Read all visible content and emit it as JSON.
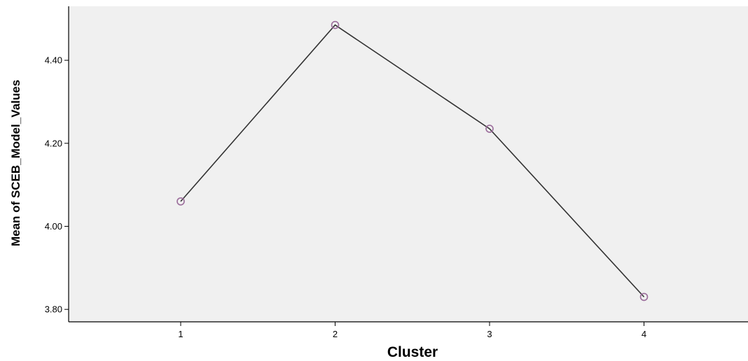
{
  "chart_data": {
    "type": "line",
    "title": "",
    "xlabel": "Cluster",
    "ylabel": "Mean of SCEB_Model_Values",
    "categories": [
      "1",
      "2",
      "3",
      "4"
    ],
    "series": [
      {
        "values": [
          4.06,
          4.485,
          4.235,
          3.83
        ]
      }
    ],
    "ylim": [
      3.77,
      4.53
    ],
    "yticks": [
      3.8,
      4.0,
      4.2,
      4.4
    ],
    "ytick_labels": [
      "3.80",
      "4.00",
      "4.20",
      "4.40"
    ],
    "grid": false,
    "legend": "none",
    "colors": {
      "plot_background": "#f0f0f0",
      "line": "#333333",
      "marker": "#9b6d9b",
      "axis": "#000000"
    }
  }
}
